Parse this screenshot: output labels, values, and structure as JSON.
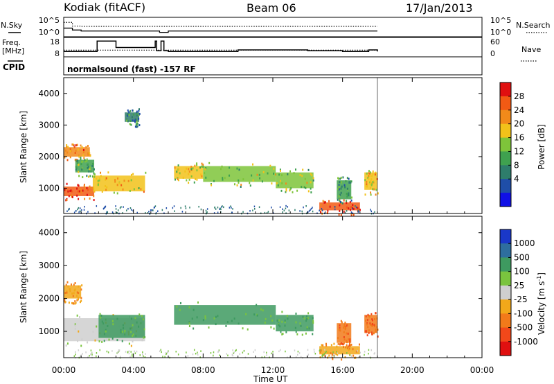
{
  "header": {
    "station": "Kodiak (fitACF)",
    "beam": "Beam 06",
    "date": "17/Jan/2013"
  },
  "strip": {
    "nsky_label": "N.Sky",
    "nsearch_label": "N.Search",
    "noise_ticks": [
      "10^5",
      "10^0"
    ],
    "freq_label_1": "Freq.",
    "freq_label_2": "[MHz]",
    "freq_ticks": [
      "18",
      "8"
    ],
    "nave_label": "Nave",
    "nave_ticks": [
      "60",
      "0"
    ],
    "cpid_label": "CPID",
    "cpid_text": "normalsound (fast) -157 RF"
  },
  "axes": {
    "ylabel": "Slant Range [km]",
    "xlabel": "Time UT",
    "y_ticks": [
      "1000",
      "2000",
      "3000",
      "4000"
    ],
    "x_ticks": [
      "00:00",
      "04:00",
      "08:00",
      "12:00",
      "16:00",
      "20:00",
      "00:00"
    ]
  },
  "colorbars": {
    "power": {
      "label": "Power [dB]",
      "ticks": [
        "4",
        "8",
        "12",
        "16",
        "20",
        "24",
        "28"
      ],
      "colors": [
        "#1010e6",
        "#1f4ea8",
        "#2e7d6b",
        "#3fa14f",
        "#7ec43a",
        "#f2c21a",
        "#f28a1a",
        "#f25a14",
        "#e01010"
      ]
    },
    "velocity": {
      "label": "Velocity [m s",
      "label_sup": "-1",
      "label_end": "]",
      "ticks": [
        "1000",
        "500",
        "100",
        "25",
        "-25",
        "-100",
        "-500",
        "-1000"
      ],
      "colors": [
        "#1a38c8",
        "#2e6e9e",
        "#3e9a60",
        "#7ac43e",
        "#cfcfcf",
        "#f2a81a",
        "#f27a1a",
        "#f2481a",
        "#e01010"
      ]
    }
  },
  "chart_data": [
    {
      "type": "line",
      "title": "Kodiak (fitACF)  Beam 06  17/Jan/2013",
      "series": [
        {
          "name": "N.Sky",
          "x": [
            "00:00",
            "00:30",
            "01:00",
            "02:00",
            "04:00",
            "05:30",
            "06:00",
            "08:00",
            "12:00",
            "16:00",
            "18:00"
          ],
          "y": [
            150,
            40,
            20,
            20,
            20,
            8,
            20,
            20,
            20,
            20,
            20
          ]
        },
        {
          "name": "N.Search",
          "x": [
            "00:00",
            "00:30",
            "01:00",
            "04:00",
            "08:00",
            "12:00",
            "16:00",
            "18:00"
          ],
          "y": [
            8000,
            600,
            500,
            500,
            500,
            500,
            500,
            500
          ]
        }
      ],
      "ylabel": "N.Sky / N.Search",
      "yscale": "log",
      "ylim": [
        1,
        100000
      ]
    },
    {
      "type": "line",
      "series": [
        {
          "name": "Freq.",
          "x": [
            "00:00",
            "01:50",
            "01:55",
            "03:00",
            "05:15",
            "05:20",
            "05:35",
            "05:45",
            "06:00",
            "08:00",
            "10:00",
            "14:00",
            "16:00",
            "17:30",
            "18:00"
          ],
          "y": [
            10.5,
            10.5,
            17,
            13,
            17,
            11,
            17,
            11,
            10.5,
            10.5,
            11.5,
            11,
            10.5,
            11.5,
            10.5
          ]
        },
        {
          "name": "Nave",
          "x": [
            "00:00",
            "18:00"
          ],
          "y": [
            20,
            20
          ]
        }
      ],
      "ylabel": "Freq. [MHz]",
      "ylim": [
        8,
        18
      ],
      "y2label": "Nave",
      "y2lim": [
        0,
        60
      ]
    },
    {
      "type": "heatmap",
      "quantity": "Power [dB]",
      "xlabel": "Time UT",
      "ylabel": "Slant Range [km]",
      "xlim": [
        "00:00",
        "24:00"
      ],
      "ylim": [
        200,
        4500
      ],
      "zlim": [
        0,
        32
      ],
      "echoes": [
        {
          "t_start": "00:00",
          "t_end": "01:45",
          "range_km": [
            750,
            1050
          ],
          "power_db": 28
        },
        {
          "t_start": "00:00",
          "t_end": "01:30",
          "range_km": [
            2000,
            2300
          ],
          "power_db": 24
        },
        {
          "t_start": "00:40",
          "t_end": "01:45",
          "range_km": [
            1500,
            1900
          ],
          "power_db": 14
        },
        {
          "t_start": "01:40",
          "t_end": "04:40",
          "range_km": [
            900,
            1400
          ],
          "power_db": 20
        },
        {
          "t_start": "03:30",
          "t_end": "04:20",
          "range_km": [
            3100,
            3400
          ],
          "power_db": 10
        },
        {
          "t_start": "06:20",
          "t_end": "08:00",
          "range_km": [
            1300,
            1700
          ],
          "power_db": 18
        },
        {
          "t_start": "08:00",
          "t_end": "12:10",
          "range_km": [
            1200,
            1700
          ],
          "power_db": 16
        },
        {
          "t_start": "12:10",
          "t_end": "14:20",
          "range_km": [
            1000,
            1500
          ],
          "power_db": 16
        },
        {
          "t_start": "14:40",
          "t_end": "17:00",
          "range_km": [
            300,
            550
          ],
          "power_db": 28
        },
        {
          "t_start": "15:40",
          "t_end": "16:30",
          "range_km": [
            650,
            1250
          ],
          "power_db": 12
        },
        {
          "t_start": "17:15",
          "t_end": "18:00",
          "range_km": [
            950,
            1500
          ],
          "power_db": 20
        }
      ]
    },
    {
      "type": "heatmap",
      "quantity": "Velocity [m s-1]",
      "xlabel": "Time UT",
      "ylabel": "Slant Range [km]",
      "xlim": [
        "00:00",
        "24:00"
      ],
      "ylim": [
        200,
        4500
      ],
      "zlim": [
        -1000,
        1000
      ],
      "echoes": [
        {
          "t_start": "00:00",
          "t_end": "04:40",
          "range_km": [
            700,
            1400
          ],
          "velocity": 0
        },
        {
          "t_start": "00:00",
          "t_end": "01:00",
          "range_km": [
            2000,
            2400
          ],
          "velocity": -100
        },
        {
          "t_start": "02:00",
          "t_end": "04:40",
          "range_km": [
            800,
            1500
          ],
          "velocity": 100
        },
        {
          "t_start": "06:20",
          "t_end": "12:10",
          "range_km": [
            1200,
            1800
          ],
          "velocity": 100
        },
        {
          "t_start": "12:10",
          "t_end": "14:20",
          "range_km": [
            1000,
            1500
          ],
          "velocity": 100
        },
        {
          "t_start": "14:40",
          "t_end": "17:00",
          "range_km": [
            300,
            550
          ],
          "velocity": -100
        },
        {
          "t_start": "15:40",
          "t_end": "16:30",
          "range_km": [
            650,
            1250
          ],
          "velocity": -500
        },
        {
          "t_start": "17:15",
          "t_end": "18:00",
          "range_km": [
            950,
            1500
          ],
          "velocity": -500
        }
      ]
    }
  ]
}
